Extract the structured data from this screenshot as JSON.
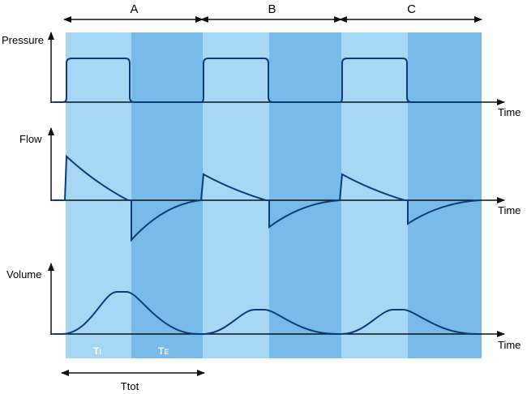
{
  "cycles": [
    {
      "label": "A"
    },
    {
      "label": "B"
    },
    {
      "label": "C"
    }
  ],
  "axes": {
    "pressure": {
      "ylabel": "Pressure",
      "xlabel": "Time"
    },
    "flow": {
      "ylabel": "Flow",
      "xlabel": "Time"
    },
    "volume": {
      "ylabel": "Volume",
      "xlabel": "Time"
    }
  },
  "phases": {
    "inspiration": {
      "label": "T",
      "sub": "I"
    },
    "expiration": {
      "label": "T",
      "sub": "E"
    }
  },
  "total_time": {
    "label": "Ttot"
  },
  "colors": {
    "inspiration_band": "#a6d8f5",
    "expiration_band": "#78bbe8",
    "trace": "#0d3a7a",
    "axis": "#111111"
  }
}
